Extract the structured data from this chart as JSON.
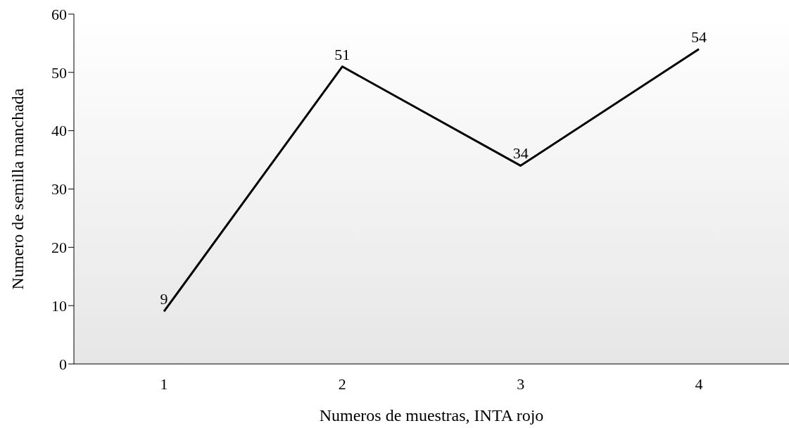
{
  "chart_data": {
    "type": "line",
    "xlabel": "Numeros de muestras, INTA rojo",
    "ylabel": "Numero de semilla manchada",
    "categories": [
      "1",
      "2",
      "3",
      "4"
    ],
    "series": [
      {
        "color": "#000000",
        "values": [
          9,
          51,
          34,
          54
        ]
      }
    ],
    "ylim": [
      0,
      60
    ],
    "yticks": [
      0,
      10,
      20,
      30,
      40,
      50,
      60
    ],
    "data_labels": true,
    "grid": false,
    "marker": "none",
    "line_style": "solid"
  }
}
